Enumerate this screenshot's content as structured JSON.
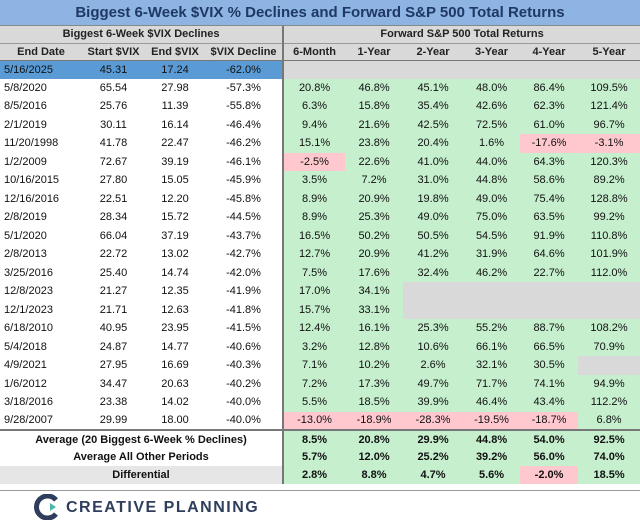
{
  "title": "Biggest 6-Week $VIX % Declines and Forward S&P 500 Total Returns",
  "group_headers": [
    "Biggest 6-Week $VIX Declines",
    "Forward S&P 500 Total Returns"
  ],
  "columns": [
    "End Date",
    "Start $VIX",
    "End $VIX",
    "$VIX Decline",
    "6-Month",
    "1-Year",
    "2-Year",
    "3-Year",
    "4-Year",
    "5-Year"
  ],
  "rows": [
    [
      "5/16/2025",
      "45.31",
      "17.24",
      "-62.0%",
      null,
      null,
      null,
      null,
      null,
      null
    ],
    [
      "5/8/2020",
      "65.54",
      "27.98",
      "-57.3%",
      "20.8%",
      "46.8%",
      "45.1%",
      "48.0%",
      "86.4%",
      "109.5%"
    ],
    [
      "8/5/2016",
      "25.76",
      "11.39",
      "-55.8%",
      "6.3%",
      "15.8%",
      "35.4%",
      "42.6%",
      "62.3%",
      "121.4%"
    ],
    [
      "2/1/2019",
      "30.11",
      "16.14",
      "-46.4%",
      "9.4%",
      "21.6%",
      "42.5%",
      "72.5%",
      "61.0%",
      "96.7%"
    ],
    [
      "11/20/1998",
      "41.78",
      "22.47",
      "-46.2%",
      "15.1%",
      "23.8%",
      "20.4%",
      "1.6%",
      "-17.6%",
      "-3.1%"
    ],
    [
      "1/2/2009",
      "72.67",
      "39.19",
      "-46.1%",
      "-2.5%",
      "22.6%",
      "41.0%",
      "44.0%",
      "64.3%",
      "120.3%"
    ],
    [
      "10/16/2015",
      "27.80",
      "15.05",
      "-45.9%",
      "3.5%",
      "7.2%",
      "31.0%",
      "44.8%",
      "58.6%",
      "89.2%"
    ],
    [
      "12/16/2016",
      "22.51",
      "12.20",
      "-45.8%",
      "8.9%",
      "20.9%",
      "19.8%",
      "49.0%",
      "75.4%",
      "128.8%"
    ],
    [
      "2/8/2019",
      "28.34",
      "15.72",
      "-44.5%",
      "8.9%",
      "25.3%",
      "49.0%",
      "75.0%",
      "63.5%",
      "99.2%"
    ],
    [
      "5/1/2020",
      "66.04",
      "37.19",
      "-43.7%",
      "16.5%",
      "50.2%",
      "50.5%",
      "54.5%",
      "91.9%",
      "110.8%"
    ],
    [
      "2/8/2013",
      "22.72",
      "13.02",
      "-42.7%",
      "12.7%",
      "20.9%",
      "41.2%",
      "31.9%",
      "64.6%",
      "101.9%"
    ],
    [
      "3/25/2016",
      "25.40",
      "14.74",
      "-42.0%",
      "7.5%",
      "17.6%",
      "32.4%",
      "46.2%",
      "22.7%",
      "112.0%"
    ],
    [
      "12/8/2023",
      "21.27",
      "12.35",
      "-41.9%",
      "17.0%",
      "34.1%",
      null,
      null,
      null,
      null
    ],
    [
      "12/1/2023",
      "21.71",
      "12.63",
      "-41.8%",
      "15.7%",
      "33.1%",
      null,
      null,
      null,
      null
    ],
    [
      "6/18/2010",
      "40.95",
      "23.95",
      "-41.5%",
      "12.4%",
      "16.1%",
      "25.3%",
      "55.2%",
      "88.7%",
      "108.2%"
    ],
    [
      "5/4/2018",
      "24.87",
      "14.77",
      "-40.6%",
      "3.2%",
      "12.8%",
      "10.6%",
      "66.1%",
      "66.5%",
      "70.9%"
    ],
    [
      "4/9/2021",
      "27.95",
      "16.69",
      "-40.3%",
      "7.1%",
      "10.2%",
      "2.6%",
      "32.1%",
      "30.5%",
      null
    ],
    [
      "1/6/2012",
      "34.47",
      "20.63",
      "-40.2%",
      "7.2%",
      "17.3%",
      "49.7%",
      "71.7%",
      "74.1%",
      "94.9%"
    ],
    [
      "3/18/2016",
      "23.38",
      "14.02",
      "-40.0%",
      "5.5%",
      "18.5%",
      "39.9%",
      "46.4%",
      "43.4%",
      "112.2%"
    ],
    [
      "9/28/2007",
      "29.99",
      "18.00",
      "-40.0%",
      "-13.0%",
      "-18.9%",
      "-28.3%",
      "-19.5%",
      "-18.7%",
      "6.8%"
    ]
  ],
  "summary_rows": [
    {
      "label": "Average (20 Biggest 6-Week % Declines)",
      "values": [
        "8.5%",
        "20.8%",
        "29.9%",
        "44.8%",
        "54.0%",
        "92.5%"
      ]
    },
    {
      "label": "Average All Other Periods",
      "values": [
        "5.7%",
        "12.0%",
        "25.2%",
        "39.2%",
        "56.0%",
        "74.0%"
      ]
    },
    {
      "label": "Differential",
      "values": [
        "2.8%",
        "8.8%",
        "4.7%",
        "5.6%",
        "-2.0%",
        "18.5%"
      ]
    }
  ],
  "footer": {
    "brand": "CREATIVE PLANNING"
  }
}
